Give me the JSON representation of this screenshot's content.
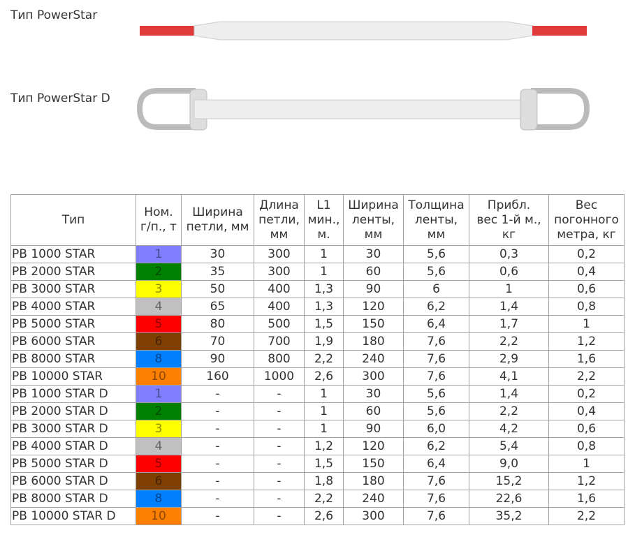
{
  "labels": [
    "Тип PowerStar",
    "Тип PowerStar D"
  ],
  "table": {
    "header": [
      "Тип",
      "Ном.\nг/п., т",
      "Ширина\nпетли, мм",
      "Длина\nпетли,\nмм",
      "L1\nмин.,\nм.",
      "Ширина\nленты,\nмм",
      "Толщина\nленты,\nмм",
      "Прибл.\nвес 1-й м.,\nкг",
      "Вес\nпогонного\nметра, кг"
    ],
    "swatch_colors": {
      "1": "#8080ff",
      "2": "#008000",
      "3": "#ffff00",
      "4": "#c0c0c0",
      "5": "#ff0000",
      "6": "#7f3f00",
      "8": "#0080ff",
      "10": "#ff8000"
    },
    "rows": [
      [
        "PB 1000 STAR",
        "1",
        "30",
        "300",
        "1",
        "30",
        "5,6",
        "0,3",
        "0,2"
      ],
      [
        "PB 2000 STAR",
        "2",
        "35",
        "300",
        "1",
        "60",
        "5,6",
        "0,6",
        "0,4"
      ],
      [
        "PB 3000 STAR",
        "3",
        "50",
        "400",
        "1,3",
        "90",
        "6",
        "1",
        "0,6"
      ],
      [
        "PB 4000 STAR",
        "4",
        "65",
        "400",
        "1,3",
        "120",
        "6,2",
        "1,4",
        "0,8"
      ],
      [
        "PB 5000 STAR",
        "5",
        "80",
        "500",
        "1,5",
        "150",
        "6,4",
        "1,7",
        "1"
      ],
      [
        "PB 6000 STAR",
        "6",
        "70",
        "700",
        "1,9",
        "180",
        "7,6",
        "2,2",
        "1,2"
      ],
      [
        "PB 8000 STAR",
        "8",
        "90",
        "800",
        "2,2",
        "240",
        "7,6",
        "2,9",
        "1,6"
      ],
      [
        "PB 10000 STAR",
        "10",
        "160",
        "1000",
        "2,6",
        "300",
        "7,6",
        "4,1",
        "2,2"
      ],
      [
        "PB 1000 STAR D",
        "1",
        "-",
        "-",
        "1",
        "30",
        "5,6",
        "1,4",
        "0,2"
      ],
      [
        "PB 2000 STAR D",
        "2",
        "-",
        "-",
        "1",
        "60",
        "5,6",
        "2,2",
        "0,4"
      ],
      [
        "PB 3000 STAR D",
        "3",
        "-",
        "-",
        "1",
        "90",
        "6,0",
        "4,2",
        "0,6"
      ],
      [
        "PB 4000 STAR D",
        "4",
        "-",
        "-",
        "1,2",
        "120",
        "6,2",
        "5,4",
        "0,8"
      ],
      [
        "PB 5000 STAR D",
        "5",
        "-",
        "-",
        "1,5",
        "150",
        "6,4",
        "9,0",
        "1"
      ],
      [
        "PB 6000 STAR D",
        "6",
        "-",
        "-",
        "1,8",
        "180",
        "7,6",
        "15,2",
        "1,2"
      ],
      [
        "PB 8000 STAR D",
        "8",
        "-",
        "-",
        "2,2",
        "240",
        "7,6",
        "22,6",
        "1,6"
      ],
      [
        "PB 10000 STAR D",
        "10",
        "-",
        "-",
        "2,6",
        "300",
        "7,6",
        "35,2",
        "2,2"
      ]
    ]
  }
}
